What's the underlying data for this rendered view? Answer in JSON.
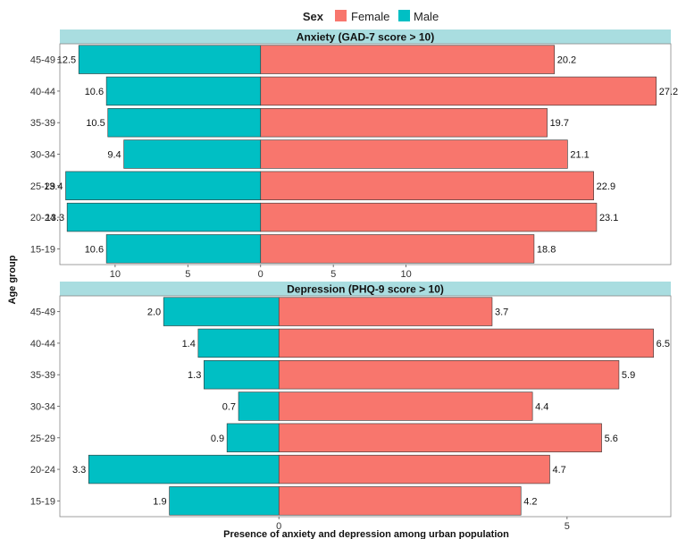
{
  "legend": {
    "title": "Sex",
    "items": [
      {
        "label": "Female",
        "color": "#F8766D"
      },
      {
        "label": "Male",
        "color": "#00BFC4"
      }
    ]
  },
  "y_axis_label": "Age group",
  "x_axis_label": "Presence of anxiety and depression among urban population",
  "chart_data": [
    {
      "type": "bar",
      "orientation": "horizontal-diverging",
      "title": "Anxiety (GAD-7 score > 10)",
      "categories": [
        "45-49",
        "40-44",
        "35-39",
        "30-34",
        "25-29",
        "20-24",
        "15-19"
      ],
      "series": [
        {
          "name": "Female",
          "values": [
            20.2,
            27.2,
            19.7,
            21.1,
            22.9,
            23.1,
            18.8
          ]
        },
        {
          "name": "Male",
          "values": [
            12.5,
            10.6,
            10.5,
            9.4,
            13.4,
            13.3,
            10.6
          ]
        }
      ],
      "xticks": [
        {
          "label": "10",
          "value": -10
        },
        {
          "label": "5",
          "value": -5
        },
        {
          "label": "0",
          "value": 0
        },
        {
          "label": "5",
          "value": 5
        },
        {
          "label": "10",
          "value": 10
        }
      ],
      "xlim": [
        -13.8,
        28.2
      ]
    },
    {
      "type": "bar",
      "orientation": "horizontal-diverging",
      "title": "Depression (PHQ-9 score > 10)",
      "categories": [
        "45-49",
        "40-44",
        "35-39",
        "30-34",
        "25-29",
        "20-24",
        "15-19"
      ],
      "series": [
        {
          "name": "Female",
          "values": [
            3.7,
            6.5,
            5.9,
            4.4,
            5.6,
            4.7,
            4.2
          ]
        },
        {
          "name": "Male",
          "values": [
            2.0,
            1.4,
            1.3,
            0.7,
            0.9,
            3.3,
            1.9
          ]
        }
      ],
      "xticks": [
        {
          "label": "0",
          "value": 0
        },
        {
          "label": "5",
          "value": 5
        }
      ],
      "xlim": [
        -3.8,
        6.8
      ]
    }
  ]
}
